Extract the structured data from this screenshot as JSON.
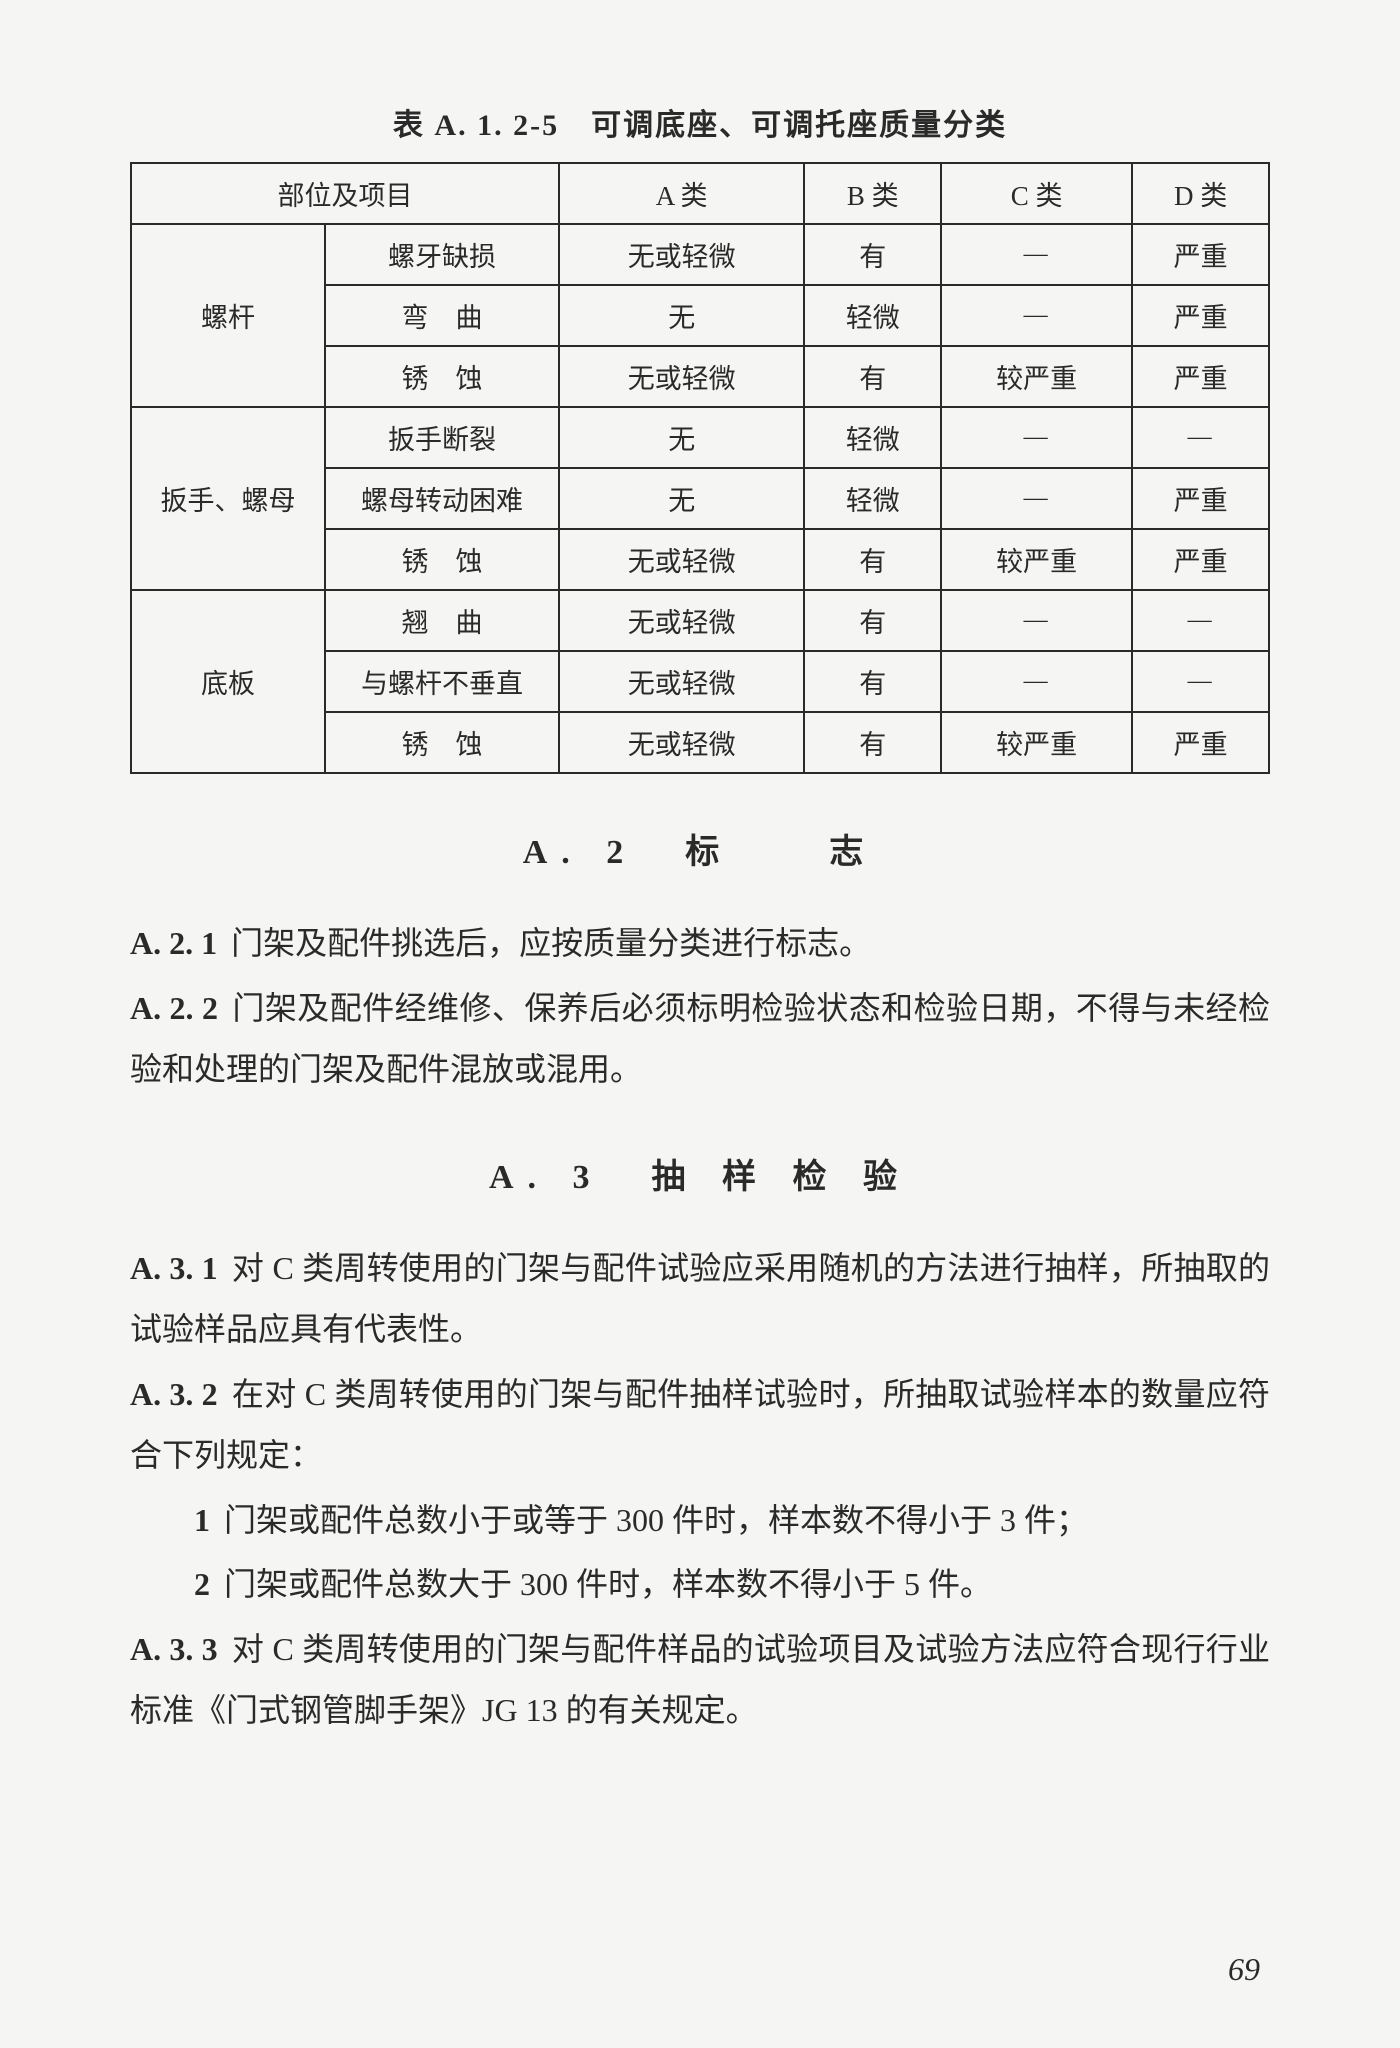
{
  "table": {
    "title": "表 A. 1. 2-5　可调底座、可调托座质量分类",
    "header": {
      "c1": "部位及项目",
      "A": "A 类",
      "B": "B 类",
      "C": "C 类",
      "D": "D 类"
    },
    "groups": [
      {
        "name": "螺杆",
        "rows": [
          {
            "item": "螺牙缺损",
            "A": "无或轻微",
            "B": "有",
            "C": "—",
            "D": "严重"
          },
          {
            "item": "弯　曲",
            "A": "无",
            "B": "轻微",
            "C": "—",
            "D": "严重"
          },
          {
            "item": "锈　蚀",
            "A": "无或轻微",
            "B": "有",
            "C": "较严重",
            "D": "严重"
          }
        ]
      },
      {
        "name": "扳手、螺母",
        "rows": [
          {
            "item": "扳手断裂",
            "A": "无",
            "B": "轻微",
            "C": "—",
            "D": "—"
          },
          {
            "item": "螺母转动困难",
            "A": "无",
            "B": "轻微",
            "C": "—",
            "D": "严重"
          },
          {
            "item": "锈　蚀",
            "A": "无或轻微",
            "B": "有",
            "C": "较严重",
            "D": "严重"
          }
        ]
      },
      {
        "name": "底板",
        "rows": [
          {
            "item": "翘　曲",
            "A": "无或轻微",
            "B": "有",
            "C": "—",
            "D": "—"
          },
          {
            "item": "与螺杆不垂直",
            "A": "无或轻微",
            "B": "有",
            "C": "—",
            "D": "—"
          },
          {
            "item": "锈　蚀",
            "A": "无或轻微",
            "B": "有",
            "C": "较严重",
            "D": "严重"
          }
        ]
      }
    ]
  },
  "sectionA2": {
    "title": "A. 2　标　　志",
    "items": [
      {
        "label": "A. 2. 1",
        "text": "门架及配件挑选后，应按质量分类进行标志。"
      },
      {
        "label": "A. 2. 2",
        "text": "门架及配件经维修、保养后必须标明检验状态和检验日期，不得与未经检验和处理的门架及配件混放或混用。"
      }
    ]
  },
  "sectionA3": {
    "title": "A. 3　抽 样 检 验",
    "items": [
      {
        "label": "A. 3. 1",
        "text": "对 C 类周转使用的门架与配件试验应采用随机的方法进行抽样，所抽取的试验样品应具有代表性。"
      },
      {
        "label": "A. 3. 2",
        "text": "在对 C 类周转使用的门架与配件抽样试验时，所抽取试验样本的数量应符合下列规定："
      }
    ],
    "subitems": [
      {
        "num": "1",
        "text": "门架或配件总数小于或等于 300 件时，样本数不得小于 3 件；"
      },
      {
        "num": "2",
        "text": "门架或配件总数大于 300 件时，样本数不得小于 5 件。"
      }
    ],
    "tail": {
      "label": "A. 3. 3",
      "text": "对 C 类周转使用的门架与配件样品的试验项目及试验方法应符合现行行业标准《门式钢管脚手架》JG 13 的有关规定。"
    }
  },
  "pageNumber": "69"
}
